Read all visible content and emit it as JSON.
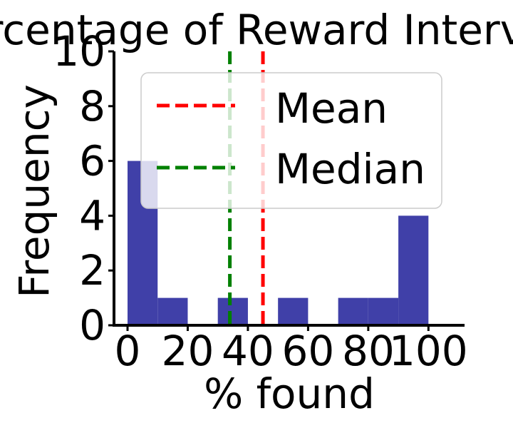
{
  "chart_data": {
    "type": "bar",
    "title": "Percentage of Reward Intervals",
    "xlabel": "% found",
    "ylabel": "Frequency",
    "xlim": [
      -4.5,
      112
    ],
    "ylim": [
      0,
      10
    ],
    "xticks": [
      0,
      20,
      40,
      60,
      80,
      100
    ],
    "xtick_labels": [
      "0",
      "20",
      "40",
      "60",
      "80",
      "100"
    ],
    "yticks": [
      0,
      2,
      4,
      6,
      8,
      10
    ],
    "ytick_labels": [
      "0",
      "2",
      "4",
      "6",
      "8",
      "10"
    ],
    "bins": [
      {
        "x0": 0,
        "x1": 10,
        "count": 6
      },
      {
        "x0": 10,
        "x1": 20,
        "count": 1
      },
      {
        "x0": 20,
        "x1": 30,
        "count": 0
      },
      {
        "x0": 30,
        "x1": 40,
        "count": 1
      },
      {
        "x0": 40,
        "x1": 50,
        "count": 0
      },
      {
        "x0": 50,
        "x1": 60,
        "count": 1
      },
      {
        "x0": 60,
        "x1": 70,
        "count": 0
      },
      {
        "x0": 70,
        "x1": 80,
        "count": 1
      },
      {
        "x0": 80,
        "x1": 90,
        "count": 1
      },
      {
        "x0": 90,
        "x1": 100,
        "count": 4
      }
    ],
    "bar_color": "#4040a8",
    "lines": [
      {
        "name": "Mean",
        "x": 45,
        "color": "#ff0000",
        "style": "dashed"
      },
      {
        "name": "Median",
        "x": 34,
        "color": "#008000",
        "style": "dashed"
      }
    ],
    "legend": {
      "placement": "upper-right",
      "entries": [
        "Mean",
        "Median"
      ]
    },
    "grid": false
  }
}
